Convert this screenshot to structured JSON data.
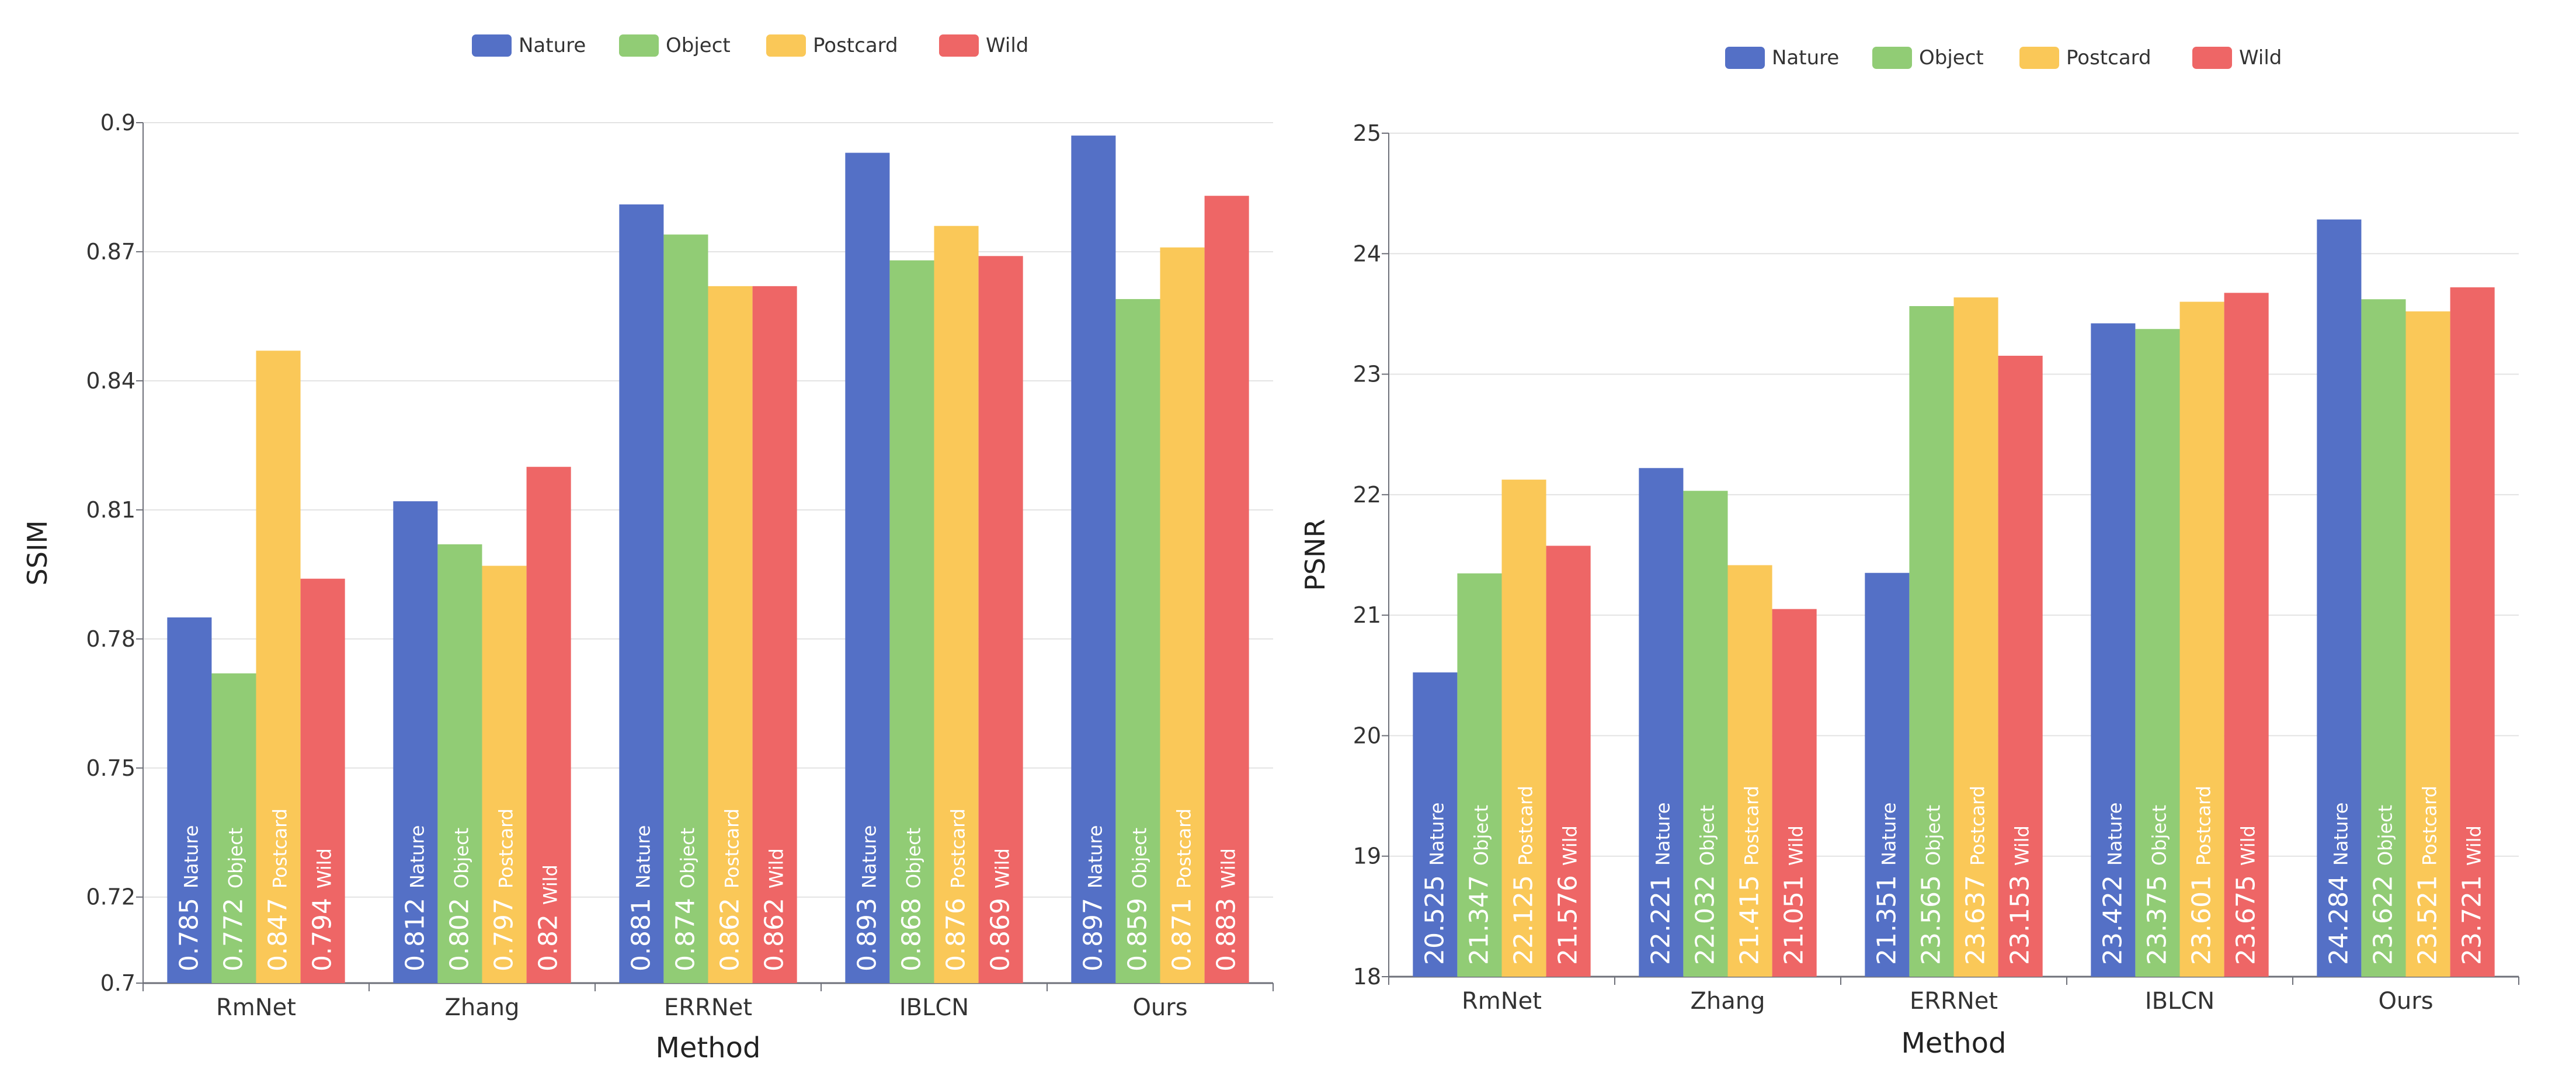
{
  "chart_data": [
    {
      "type": "bar",
      "title": "",
      "xlabel": "Method",
      "ylabel": "SSIM",
      "categories": [
        "RmNet",
        "Zhang",
        "ERRNet",
        "IBLCN",
        "Ours"
      ],
      "ylim": [
        0.7,
        0.9
      ],
      "yticks": [
        "0.7",
        "0.72",
        "0.75",
        "0.78",
        "0.81",
        "0.84",
        "0.87",
        "0.9"
      ],
      "grid": true,
      "legend_position": "top-center",
      "series": [
        {
          "name": "Nature",
          "color": "#5470c6",
          "values": [
            0.785,
            0.812,
            0.881,
            0.893,
            0.897
          ],
          "labels": [
            "0.785",
            "0.812",
            "0.881",
            "0.893",
            "0.897"
          ]
        },
        {
          "name": "Object",
          "color": "#91cc75",
          "values": [
            0.772,
            0.802,
            0.874,
            0.868,
            0.859
          ],
          "labels": [
            "0.772",
            "0.802",
            "0.874",
            "0.868",
            "0.859"
          ]
        },
        {
          "name": "Postcard",
          "color": "#fac858",
          "values": [
            0.847,
            0.797,
            0.862,
            0.876,
            0.871
          ],
          "labels": [
            "0.847",
            "0.797",
            "0.862",
            "0.876",
            "0.871"
          ]
        },
        {
          "name": "Wild",
          "color": "#ee6666",
          "values": [
            0.794,
            0.82,
            0.862,
            0.869,
            0.883
          ],
          "labels": [
            "0.794",
            "0.82",
            "0.862",
            "0.869",
            "0.883"
          ]
        }
      ]
    },
    {
      "type": "bar",
      "title": "",
      "xlabel": "Method",
      "ylabel": "PSNR",
      "categories": [
        "RmNet",
        "Zhang",
        "ERRNet",
        "IBLCN",
        "Ours"
      ],
      "ylim": [
        18,
        25
      ],
      "yticks": [
        "18",
        "19",
        "20",
        "21",
        "22",
        "23",
        "24",
        "25"
      ],
      "grid": true,
      "legend_position": "top-center",
      "series": [
        {
          "name": "Nature",
          "color": "#5470c6",
          "values": [
            20.525,
            22.221,
            21.351,
            23.422,
            24.284
          ],
          "labels": [
            "20.525",
            "22.221",
            "21.351",
            "23.422",
            "24.284"
          ]
        },
        {
          "name": "Object",
          "color": "#91cc75",
          "values": [
            21.347,
            22.032,
            23.565,
            23.375,
            23.622
          ],
          "labels": [
            "21.347",
            "22.032",
            "23.565",
            "23.375",
            "23.622"
          ]
        },
        {
          "name": "Postcard",
          "color": "#fac858",
          "values": [
            22.125,
            21.415,
            23.637,
            23.601,
            23.521
          ],
          "labels": [
            "22.125",
            "21.415",
            "23.637",
            "23.601",
            "23.521"
          ]
        },
        {
          "name": "Wild",
          "color": "#ee6666",
          "values": [
            21.576,
            21.051,
            23.153,
            23.675,
            23.721
          ],
          "labels": [
            "21.576",
            "21.051",
            "23.153",
            "23.675",
            "23.721"
          ]
        }
      ]
    }
  ]
}
